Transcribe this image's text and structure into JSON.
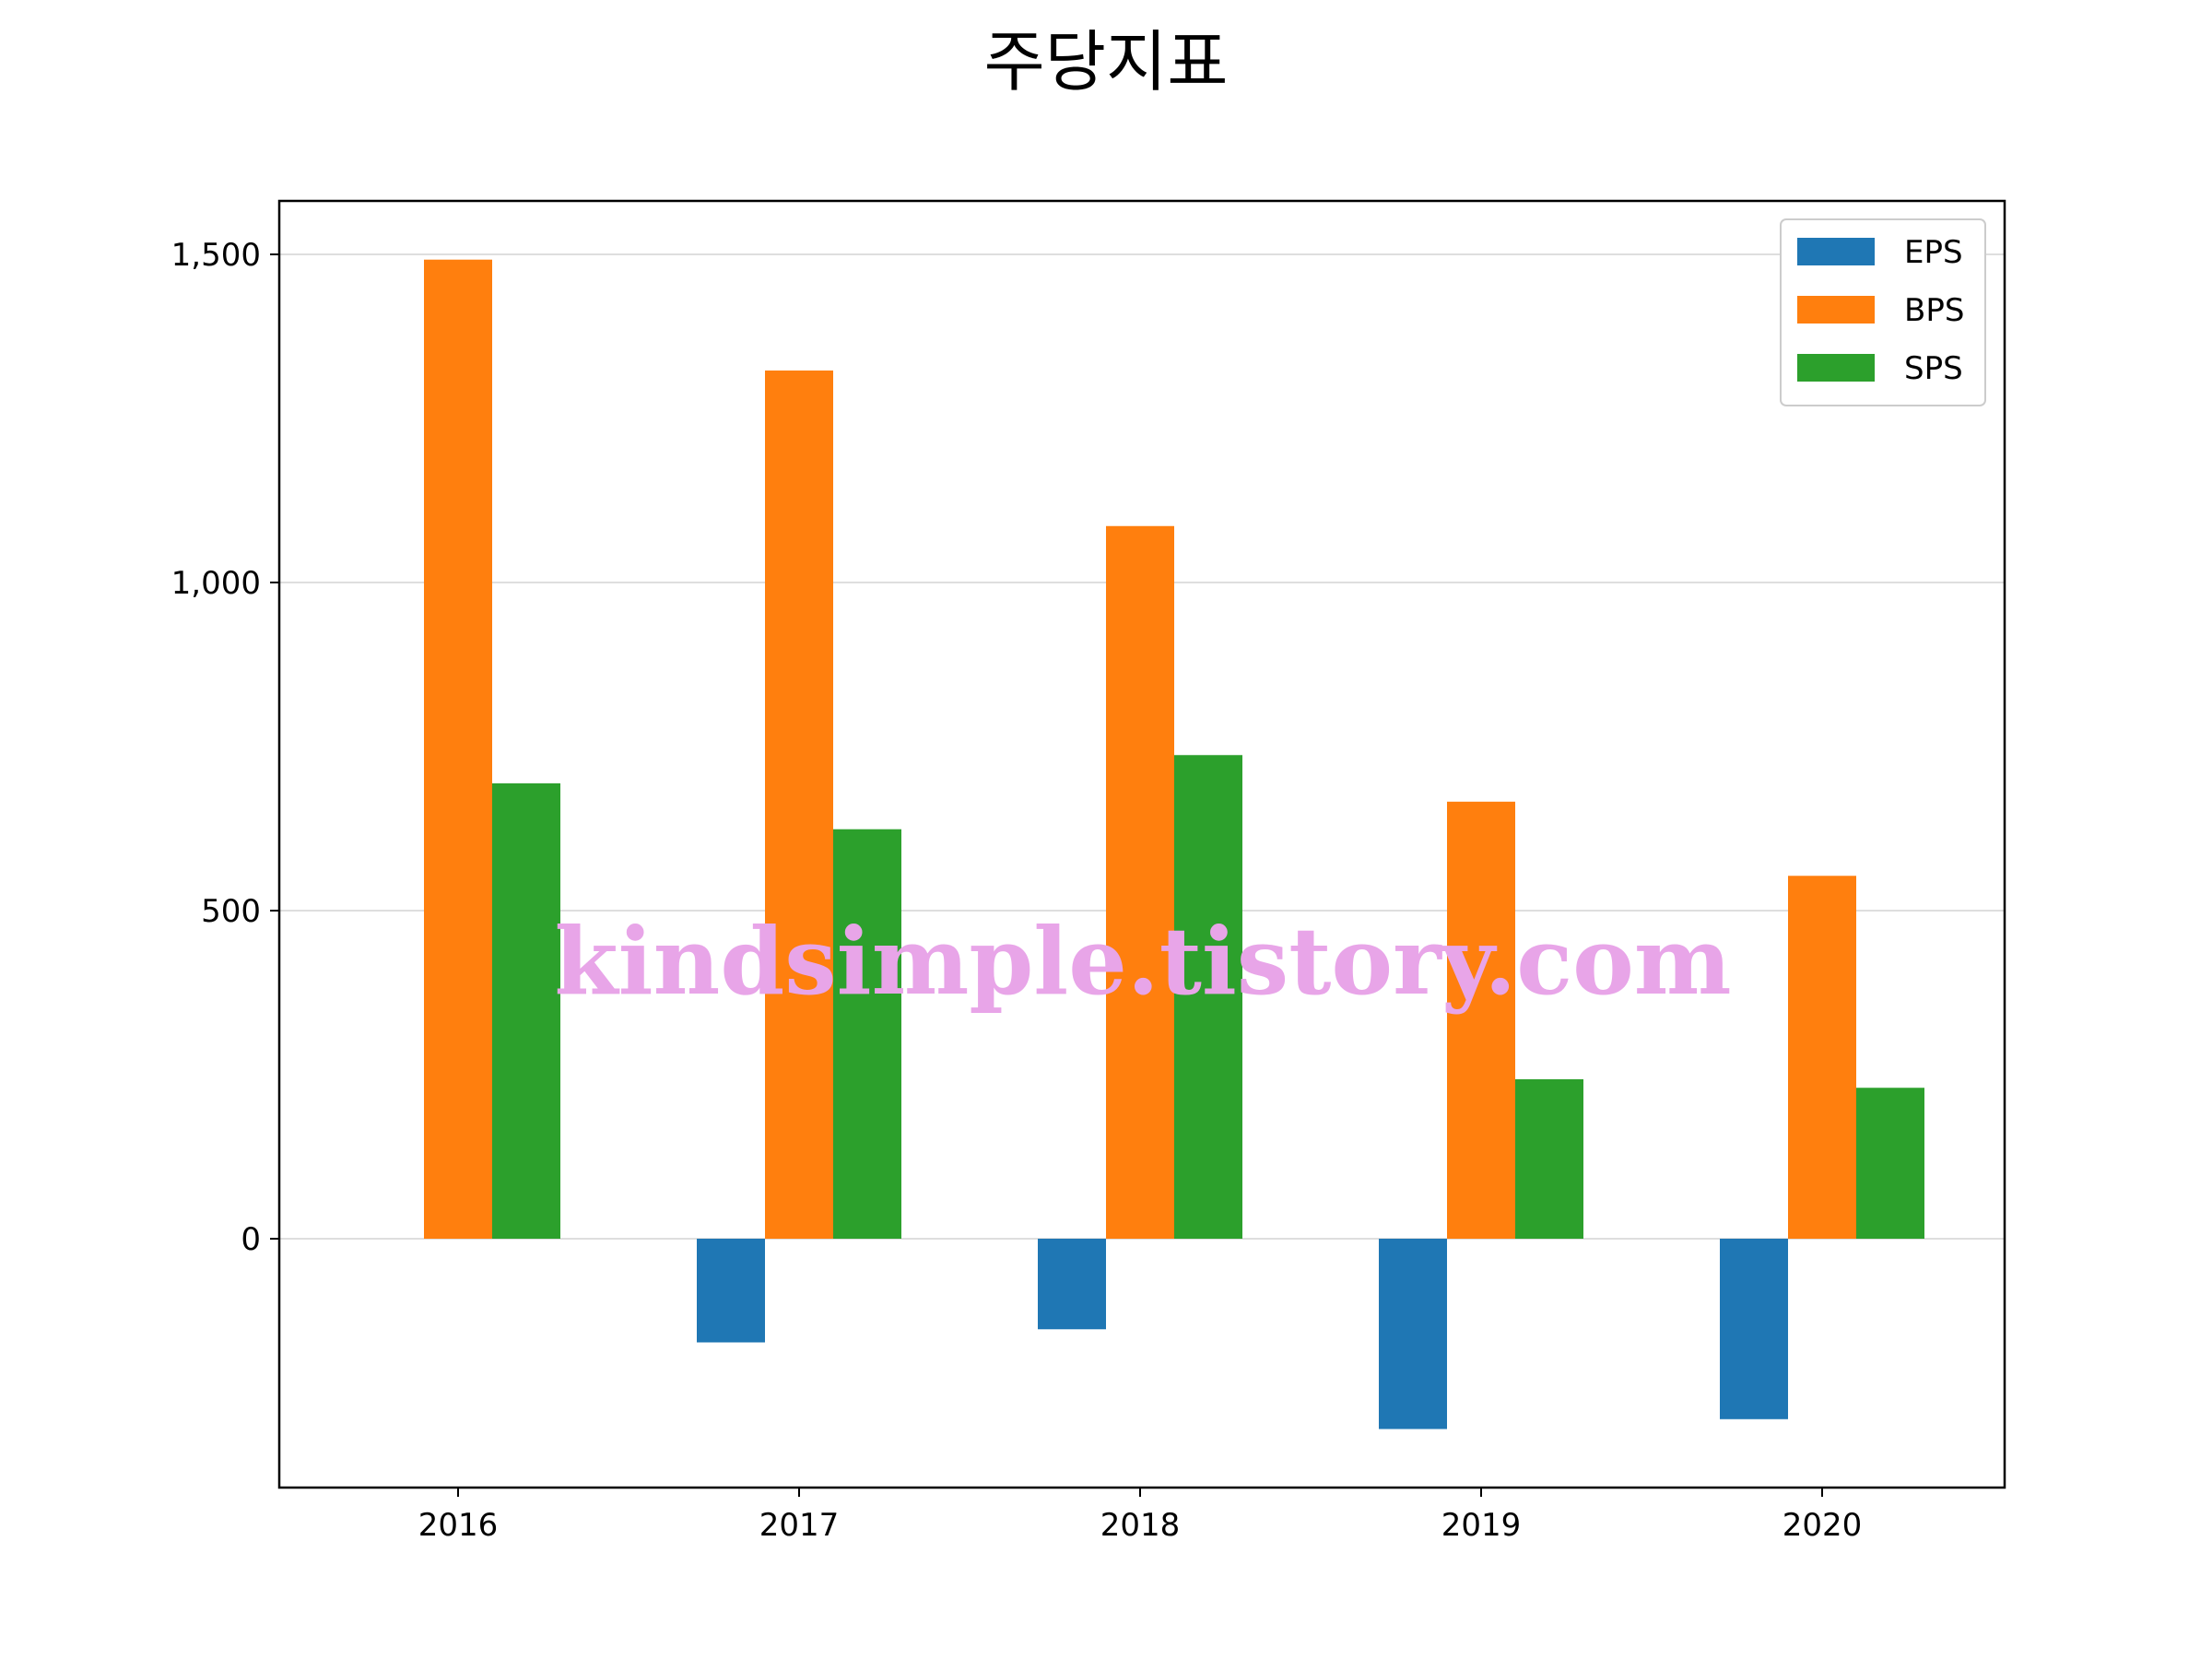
{
  "chart_data": {
    "type": "bar",
    "title": "주당지표",
    "xlabel": "",
    "ylabel": "",
    "categories": [
      "2016",
      "2017",
      "2018",
      "2019",
      "2020"
    ],
    "series": [
      {
        "name": "EPS",
        "color": "#1f77b4",
        "values": [
          0,
          -158,
          -138,
          -290,
          -275
        ]
      },
      {
        "name": "BPS",
        "color": "#ff7f0e",
        "values": [
          1492,
          1323,
          1086,
          666,
          553
        ]
      },
      {
        "name": "SPS",
        "color": "#2ca02c",
        "values": [
          694,
          624,
          737,
          243,
          230
        ]
      }
    ],
    "yticks": [
      0,
      500,
      1000,
      1500
    ],
    "ytick_labels": [
      "0",
      "500",
      "1,000",
      "1,500"
    ],
    "ylim": [
      -380,
      1580
    ],
    "grid": "y",
    "legend": "top-right"
  },
  "watermark": "kindsimple.tistory.com"
}
